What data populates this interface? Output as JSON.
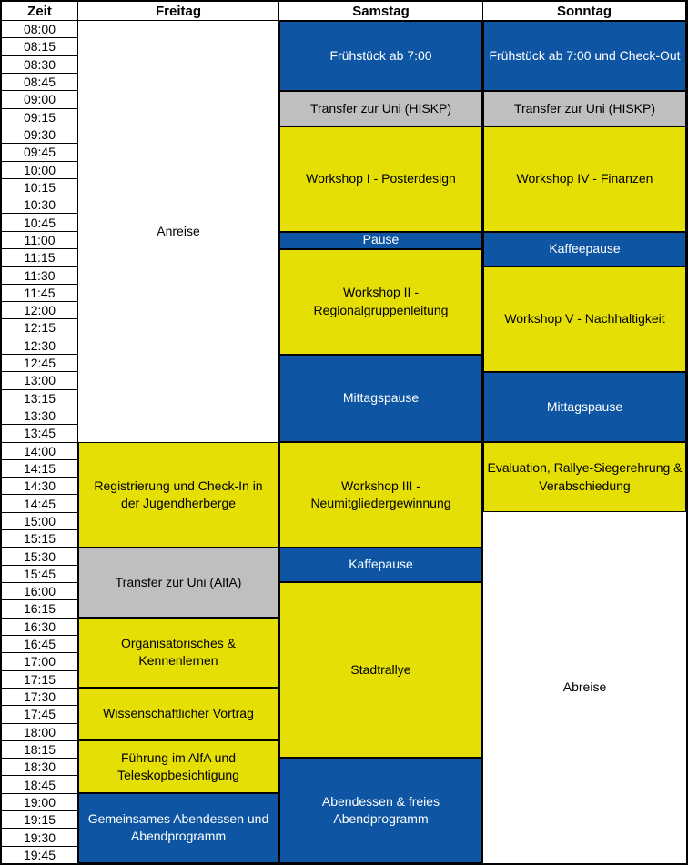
{
  "header": {
    "columns": [
      "Zeit",
      "Freitag",
      "Samstag",
      "Sonntag"
    ]
  },
  "times": [
    "08:00",
    "08:15",
    "08:30",
    "08:45",
    "09:00",
    "09:15",
    "09:30",
    "09:45",
    "10:00",
    "10:15",
    "10:30",
    "10:45",
    "11:00",
    "11:15",
    "11:30",
    "11:45",
    "12:00",
    "12:15",
    "12:30",
    "12:45",
    "13:00",
    "13:15",
    "13:30",
    "13:45",
    "14:00",
    "14:15",
    "14:30",
    "14:45",
    "15:00",
    "15:15",
    "15:30",
    "15:45",
    "16:00",
    "16:15",
    "16:30",
    "16:45",
    "17:00",
    "17:15",
    "17:30",
    "17:45",
    "18:00",
    "18:15",
    "18:30",
    "18:45",
    "19:00",
    "19:15",
    "19:30",
    "19:45"
  ],
  "colors": {
    "blue": "#0E56A4",
    "yellow": "#E5DF06",
    "gray": "#BFBFBF",
    "white": "#FFFFFF",
    "text_on_blue": "#FFFFFF",
    "text_dark": "#000000",
    "border": "#000000"
  },
  "schedule": {
    "friday": [
      {
        "label": "Anreise",
        "start": "08:00",
        "end": "14:00",
        "color": "white"
      },
      {
        "label": "Registrierung und Check-In in der Jugendherberge",
        "start": "14:00",
        "end": "15:30",
        "color": "yellow"
      },
      {
        "label": "Transfer zur Uni (AlfA)",
        "start": "15:30",
        "end": "16:30",
        "color": "gray"
      },
      {
        "label": "Organisatorisches & Kennenlernen",
        "start": "16:30",
        "end": "17:30",
        "color": "yellow"
      },
      {
        "label": "Wissenschaftlicher Vortrag",
        "start": "17:30",
        "end": "18:15",
        "color": "yellow"
      },
      {
        "label": "Führung im AlfA und Teleskopbesichtigung",
        "start": "18:15",
        "end": "19:00",
        "color": "yellow"
      },
      {
        "label": "Gemeinsames Abendessen und Abendprogramm",
        "start": "19:00",
        "end": "20:00",
        "color": "blue"
      }
    ],
    "saturday": [
      {
        "label": "Frühstück ab 7:00",
        "start": "08:00",
        "end": "09:00",
        "color": "blue"
      },
      {
        "label": "Transfer zur Uni (HISKP)",
        "start": "09:00",
        "end": "09:30",
        "color": "gray"
      },
      {
        "label": "Workshop I - Posterdesign",
        "start": "09:30",
        "end": "11:00",
        "color": "yellow"
      },
      {
        "label": "Pause",
        "start": "11:00",
        "end": "11:15",
        "color": "blue"
      },
      {
        "label": "Workshop II - Regionalgruppenleitung",
        "start": "11:15",
        "end": "12:45",
        "color": "yellow"
      },
      {
        "label": "Mittagspause",
        "start": "12:45",
        "end": "14:00",
        "color": "blue"
      },
      {
        "label": "Workshop III - Neumitgliedergewinnung",
        "start": "14:00",
        "end": "15:30",
        "color": "yellow"
      },
      {
        "label": "Kaffepause",
        "start": "15:30",
        "end": "16:00",
        "color": "blue"
      },
      {
        "label": "Stadtrallye",
        "start": "16:00",
        "end": "18:30",
        "color": "yellow"
      },
      {
        "label": "Abendessen & freies Abendprogramm",
        "start": "18:30",
        "end": "20:00",
        "color": "blue"
      }
    ],
    "sunday": [
      {
        "label": "Frühstück ab 7:00 und Check-Out",
        "start": "08:00",
        "end": "09:00",
        "color": "blue"
      },
      {
        "label": "Transfer zur Uni (HISKP)",
        "start": "09:00",
        "end": "09:30",
        "color": "gray"
      },
      {
        "label": "Workshop IV - Finanzen",
        "start": "09:30",
        "end": "11:00",
        "color": "yellow"
      },
      {
        "label": "Kaffeepause",
        "start": "11:00",
        "end": "11:30",
        "color": "blue"
      },
      {
        "label": "Workshop V - Nachhaltigkeit",
        "start": "11:30",
        "end": "13:00",
        "color": "yellow"
      },
      {
        "label": "Mittagspause",
        "start": "13:00",
        "end": "14:00",
        "color": "blue"
      },
      {
        "label": "Evaluation, Rallye-Siegerehrung & Verabschiedung",
        "start": "14:00",
        "end": "15:00",
        "color": "yellow"
      },
      {
        "label": "Abreise",
        "start": "15:00",
        "end": "20:00",
        "color": "white"
      }
    ]
  }
}
